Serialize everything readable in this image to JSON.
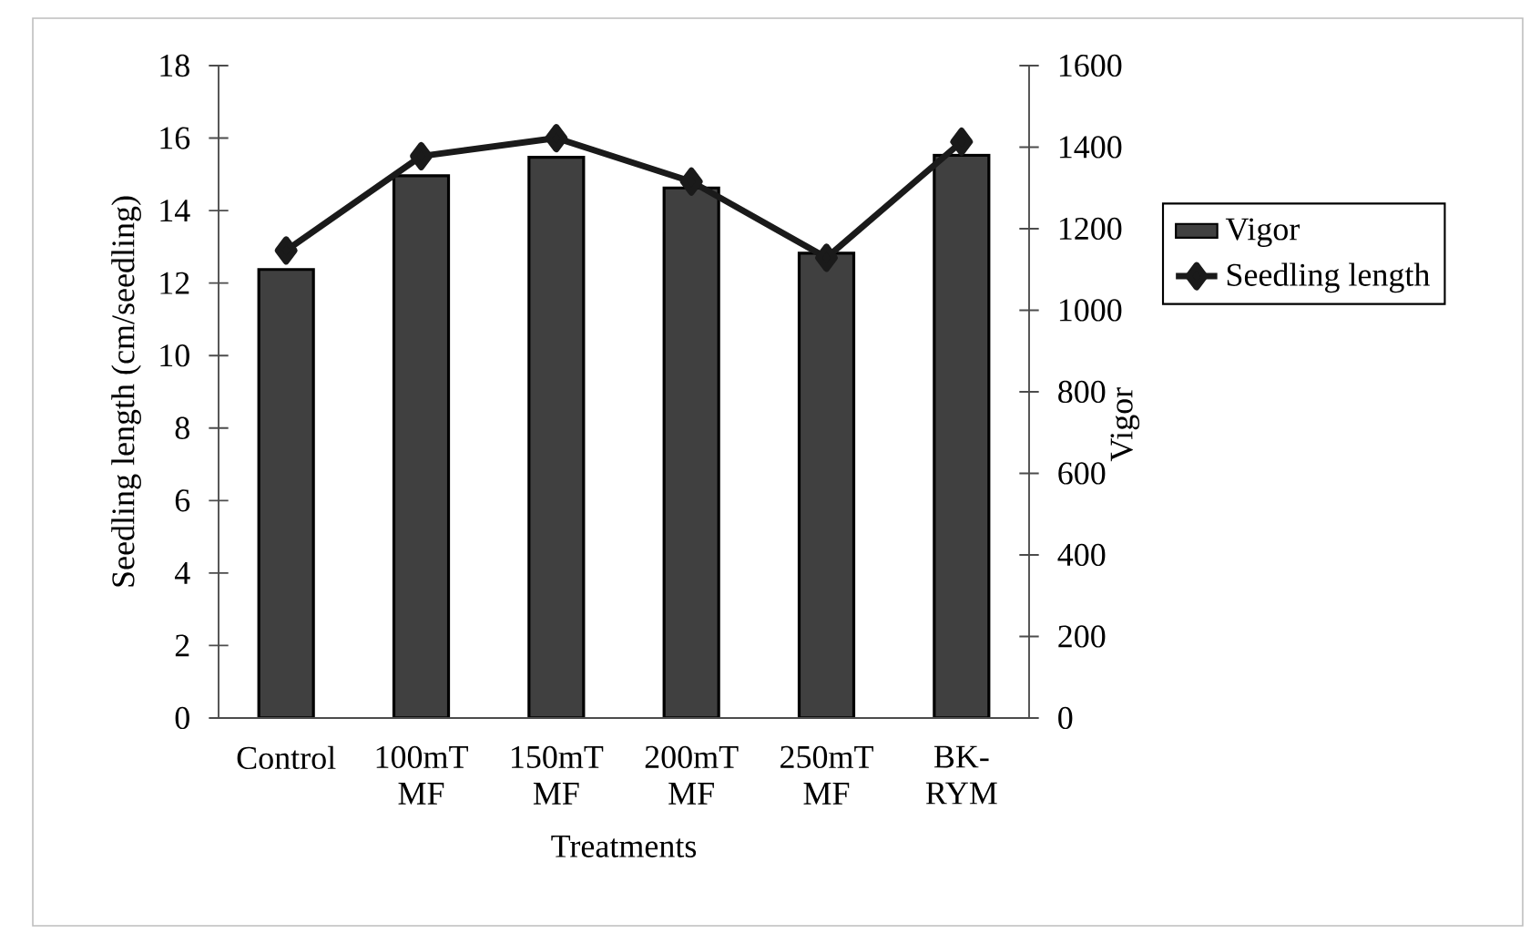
{
  "chart_data": {
    "type": "bar",
    "xlabel": "Treatments",
    "ylabel": "Seedling length (cm/seedling)",
    "y2label": "Vigor",
    "categories": [
      "Control",
      "100mT MF",
      "150mT MF",
      "200mT MF",
      "250mT MF",
      "BK-RYM"
    ],
    "series": [
      {
        "name": "Vigor",
        "axis": "y2",
        "color": "#404040",
        "values": [
          1100,
          1330,
          1375,
          1300,
          1140,
          1380
        ]
      },
      {
        "name": "Seedling length",
        "type": "line",
        "marker": "diamond",
        "line_style": "solid",
        "color": "#1a1a1a",
        "values": [
          12.9,
          15.5,
          16.0,
          14.8,
          12.7,
          15.9
        ]
      }
    ],
    "ylim": [
      0,
      18
    ],
    "yticks": [
      0,
      2,
      4,
      6,
      8,
      10,
      12,
      14,
      16,
      18
    ],
    "y2lim": [
      0,
      1600
    ],
    "y2ticks": [
      0,
      200,
      400,
      600,
      800,
      1000,
      1200,
      1400,
      1600
    ],
    "legend": "right"
  }
}
